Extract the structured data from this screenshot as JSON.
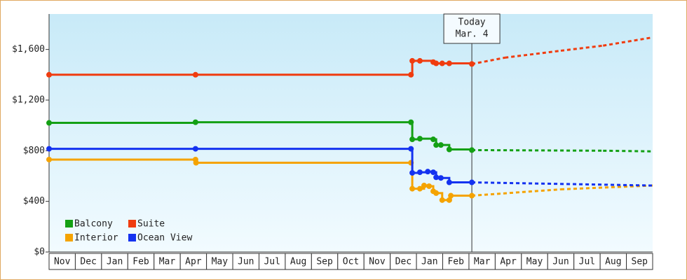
{
  "chart_data": {
    "type": "step-line",
    "categories": [
      "Nov",
      "Dec",
      "Jan",
      "Feb",
      "Mar",
      "Apr",
      "May",
      "Jun",
      "Jul",
      "Aug",
      "Sep",
      "Oct",
      "Nov",
      "Dec",
      "Jan",
      "Feb",
      "Mar",
      "Apr",
      "May",
      "Jun",
      "Jul",
      "Aug",
      "Sep"
    ],
    "xlim": [
      0,
      23
    ],
    "ylim": [
      0,
      1880
    ],
    "yticks": [
      {
        "value": 0,
        "label": "$0"
      },
      {
        "value": 400,
        "label": "$400"
      },
      {
        "value": 800,
        "label": "$800"
      },
      {
        "value": 1200,
        "label": "$1,200"
      },
      {
        "value": 1600,
        "label": "$1,600"
      }
    ],
    "today": {
      "x": 16.11,
      "label": [
        "Today",
        "Mar. 4"
      ]
    },
    "legend": "lower left",
    "series": [
      {
        "name": "Balcony",
        "color": "#14a014",
        "x": [
          0,
          5.58,
          13.79,
          13.84,
          14.13,
          14.64,
          14.75,
          14.93,
          15.25,
          16.11,
          21.11,
          23
        ],
        "values": [
          1020,
          1025,
          1025,
          890,
          895,
          890,
          845,
          845,
          810,
          805,
          800,
          795
        ]
      },
      {
        "name": "Suite",
        "color": "#f03c0f",
        "x": [
          0,
          5.58,
          13.79,
          13.84,
          14.13,
          14.64,
          14.75,
          14.98,
          15.25,
          16.11,
          17.37,
          19.5,
          21.11,
          23
        ],
        "values": [
          1400,
          1400,
          1400,
          1510,
          1510,
          1500,
          1490,
          1490,
          1490,
          1485,
          1535,
          1590,
          1630,
          1695
        ]
      },
      {
        "name": "Interior",
        "color": "#f5a300",
        "x": [
          0,
          5.58,
          5.6,
          13.79,
          13.84,
          14.13,
          14.29,
          14.48,
          14.64,
          14.75,
          14.98,
          15.25,
          15.31,
          16.11,
          19.5,
          23
        ],
        "values": [
          730,
          730,
          705,
          705,
          500,
          500,
          525,
          520,
          480,
          465,
          410,
          410,
          445,
          445,
          495,
          525
        ]
      },
      {
        "name": "Ocean View",
        "color": "#1432f0",
        "x": [
          0,
          5.58,
          13.79,
          13.84,
          14.13,
          14.43,
          14.64,
          14.75,
          14.93,
          15.25,
          16.11,
          23
        ],
        "values": [
          815,
          815,
          815,
          625,
          630,
          635,
          630,
          590,
          585,
          550,
          550,
          525
        ]
      }
    ]
  }
}
